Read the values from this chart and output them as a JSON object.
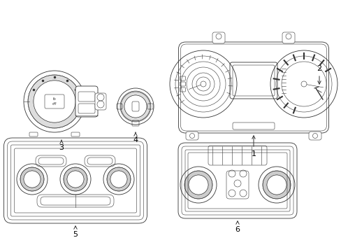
{
  "background_color": "#ffffff",
  "line_color": "#333333",
  "label_color": "#000000",
  "fig_width": 4.89,
  "fig_height": 3.6,
  "dpi": 100
}
